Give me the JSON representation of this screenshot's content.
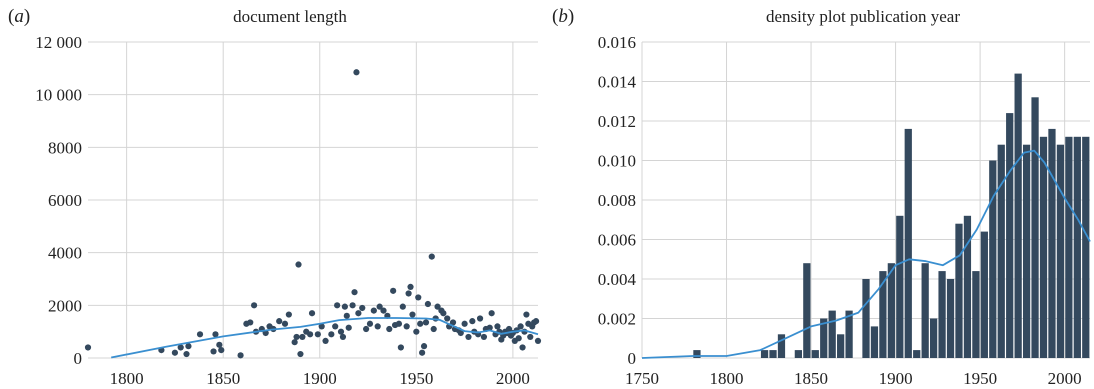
{
  "chart_data": [
    {
      "type": "scatter",
      "panel_label": "a",
      "title": "document length",
      "xlabel": "",
      "ylabel": "",
      "xlim": [
        1780,
        2013
      ],
      "ylim": [
        0,
        12000
      ],
      "xticks": [
        1800,
        1850,
        1900,
        1950,
        2000
      ],
      "xtick_labels": [
        "1800",
        "1850",
        "1900",
        "1950",
        "2000"
      ],
      "yticks": [
        0,
        2000,
        4000,
        6000,
        8000,
        10000,
        12000
      ],
      "ytick_labels": [
        "0",
        "2000",
        "4000",
        "6000",
        "8000",
        "10 000",
        "12 000"
      ],
      "grid": true,
      "point_color": "#34495e",
      "line_color": "#3a8fd0",
      "points": [
        [
          1780,
          400
        ],
        [
          1818,
          300
        ],
        [
          1825,
          200
        ],
        [
          1828,
          400
        ],
        [
          1831,
          150
        ],
        [
          1832,
          450
        ],
        [
          1838,
          900
        ],
        [
          1845,
          250
        ],
        [
          1846,
          900
        ],
        [
          1848,
          500
        ],
        [
          1849,
          300
        ],
        [
          1859,
          100
        ],
        [
          1862,
          1300
        ],
        [
          1864,
          1350
        ],
        [
          1866,
          2000
        ],
        [
          1867,
          1000
        ],
        [
          1870,
          1100
        ],
        [
          1872,
          950
        ],
        [
          1874,
          1200
        ],
        [
          1876,
          1100
        ],
        [
          1879,
          1400
        ],
        [
          1882,
          1300
        ],
        [
          1884,
          1650
        ],
        [
          1887,
          600
        ],
        [
          1888,
          800
        ],
        [
          1889,
          3550
        ],
        [
          1890,
          150
        ],
        [
          1891,
          800
        ],
        [
          1893,
          1000
        ],
        [
          1895,
          900
        ],
        [
          1896,
          1700
        ],
        [
          1899,
          900
        ],
        [
          1901,
          1200
        ],
        [
          1903,
          650
        ],
        [
          1906,
          900
        ],
        [
          1908,
          1200
        ],
        [
          1909,
          2000
        ],
        [
          1911,
          1000
        ],
        [
          1912,
          800
        ],
        [
          1913,
          1950
        ],
        [
          1914,
          1600
        ],
        [
          1915,
          1150
        ],
        [
          1917,
          2000
        ],
        [
          1918,
          2500
        ],
        [
          1919,
          10850
        ],
        [
          1920,
          1700
        ],
        [
          1922,
          1900
        ],
        [
          1924,
          1100
        ],
        [
          1926,
          1300
        ],
        [
          1928,
          1800
        ],
        [
          1930,
          1200
        ],
        [
          1931,
          1950
        ],
        [
          1933,
          1800
        ],
        [
          1935,
          1600
        ],
        [
          1936,
          1100
        ],
        [
          1938,
          2550
        ],
        [
          1939,
          1250
        ],
        [
          1941,
          1300
        ],
        [
          1942,
          400
        ],
        [
          1943,
          1950
        ],
        [
          1945,
          1200
        ],
        [
          1946,
          2450
        ],
        [
          1947,
          2700
        ],
        [
          1948,
          1650
        ],
        [
          1950,
          1000
        ],
        [
          1951,
          2300
        ],
        [
          1952,
          1300
        ],
        [
          1953,
          200
        ],
        [
          1954,
          450
        ],
        [
          1955,
          1350
        ],
        [
          1956,
          2050
        ],
        [
          1958,
          3850
        ],
        [
          1959,
          1100
        ],
        [
          1960,
          1500
        ],
        [
          1961,
          1950
        ],
        [
          1963,
          1800
        ],
        [
          1964,
          1700
        ],
        [
          1966,
          1500
        ],
        [
          1967,
          1200
        ],
        [
          1969,
          1350
        ],
        [
          1970,
          1100
        ],
        [
          1972,
          1050
        ],
        [
          1973,
          950
        ],
        [
          1975,
          1300
        ],
        [
          1977,
          800
        ],
        [
          1979,
          1400
        ],
        [
          1980,
          1000
        ],
        [
          1982,
          900
        ],
        [
          1983,
          1500
        ],
        [
          1985,
          800
        ],
        [
          1986,
          1100
        ],
        [
          1988,
          1150
        ],
        [
          1989,
          1700
        ],
        [
          1991,
          900
        ],
        [
          1992,
          1200
        ],
        [
          1993,
          1000
        ],
        [
          1994,
          700
        ],
        [
          1995,
          850
        ],
        [
          1996,
          1000
        ],
        [
          1997,
          950
        ],
        [
          1998,
          1100
        ],
        [
          1999,
          850
        ],
        [
          2000,
          950
        ],
        [
          2001,
          650
        ],
        [
          2002,
          1050
        ],
        [
          2003,
          750
        ],
        [
          2004,
          1200
        ],
        [
          2005,
          400
        ],
        [
          2006,
          1000
        ],
        [
          2007,
          1650
        ],
        [
          2008,
          1300
        ],
        [
          2009,
          800
        ],
        [
          2010,
          1200
        ],
        [
          2011,
          1350
        ],
        [
          2012,
          1400
        ],
        [
          2013,
          650
        ]
      ],
      "trend": [
        [
          1792,
          20
        ],
        [
          1820,
          420
        ],
        [
          1850,
          820
        ],
        [
          1875,
          1080
        ],
        [
          1890,
          1180
        ],
        [
          1900,
          1300
        ],
        [
          1910,
          1440
        ],
        [
          1925,
          1520
        ],
        [
          1940,
          1520
        ],
        [
          1955,
          1500
        ],
        [
          1962,
          1450
        ],
        [
          1968,
          1250
        ],
        [
          1975,
          1020
        ],
        [
          1982,
          970
        ],
        [
          1988,
          1050
        ],
        [
          1994,
          920
        ],
        [
          2000,
          1000
        ],
        [
          2006,
          1050
        ],
        [
          2013,
          900
        ]
      ]
    },
    {
      "type": "bar",
      "panel_label": "b",
      "title": "density plot publication year",
      "xlabel": "",
      "ylabel": "",
      "xlim": [
        1750,
        2015
      ],
      "ylim": [
        0,
        0.016
      ],
      "xticks": [
        1750,
        1800,
        1850,
        1900,
        1950,
        2000
      ],
      "xtick_labels": [
        "1750",
        "1800",
        "1850",
        "1900",
        "1950",
        "2000"
      ],
      "yticks": [
        0,
        0.002,
        0.004,
        0.006,
        0.008,
        0.01,
        0.012,
        0.014,
        0.016
      ],
      "ytick_labels": [
        "0",
        "0.002",
        "0.004",
        "0.006",
        "0.008",
        "0.010",
        "0.012",
        "0.014",
        "0.016"
      ],
      "grid": true,
      "bar_color": "#34495e",
      "line_color": "#3a8fd0",
      "bin_width": 5,
      "bins": [
        [
          1780,
          0.0004
        ],
        [
          1820,
          0.0004
        ],
        [
          1825,
          0.0004
        ],
        [
          1830,
          0.0012
        ],
        [
          1840,
          0.0004
        ],
        [
          1845,
          0.0048
        ],
        [
          1850,
          0.0004
        ],
        [
          1855,
          0.002
        ],
        [
          1860,
          0.0024
        ],
        [
          1865,
          0.0012
        ],
        [
          1870,
          0.0024
        ],
        [
          1880,
          0.004
        ],
        [
          1885,
          0.0016
        ],
        [
          1890,
          0.0044
        ],
        [
          1895,
          0.0048
        ],
        [
          1900,
          0.0072
        ],
        [
          1905,
          0.0116
        ],
        [
          1910,
          0.0004
        ],
        [
          1915,
          0.0048
        ],
        [
          1920,
          0.002
        ],
        [
          1925,
          0.0044
        ],
        [
          1930,
          0.004
        ],
        [
          1935,
          0.0068
        ],
        [
          1940,
          0.0072
        ],
        [
          1945,
          0.0044
        ],
        [
          1950,
          0.0064
        ],
        [
          1955,
          0.01
        ],
        [
          1960,
          0.0108
        ],
        [
          1965,
          0.0124
        ],
        [
          1970,
          0.0144
        ],
        [
          1975,
          0.0108
        ],
        [
          1980,
          0.0132
        ],
        [
          1985,
          0.0112
        ],
        [
          1990,
          0.0116
        ],
        [
          1995,
          0.0108
        ],
        [
          2000,
          0.0112
        ],
        [
          2005,
          0.0112
        ],
        [
          2010,
          0.0112
        ]
      ],
      "density": [
        [
          1750,
          0.0
        ],
        [
          1780,
          0.0001
        ],
        [
          1800,
          0.0001
        ],
        [
          1820,
          0.0004
        ],
        [
          1835,
          0.001
        ],
        [
          1850,
          0.0016
        ],
        [
          1865,
          0.0019
        ],
        [
          1878,
          0.0023
        ],
        [
          1890,
          0.0035
        ],
        [
          1900,
          0.0047
        ],
        [
          1908,
          0.005
        ],
        [
          1918,
          0.0049
        ],
        [
          1928,
          0.0047
        ],
        [
          1938,
          0.0052
        ],
        [
          1948,
          0.0065
        ],
        [
          1958,
          0.0082
        ],
        [
          1968,
          0.0095
        ],
        [
          1976,
          0.0104
        ],
        [
          1982,
          0.0105
        ],
        [
          1988,
          0.0099
        ],
        [
          1994,
          0.009
        ],
        [
          2000,
          0.0081
        ],
        [
          2008,
          0.007
        ],
        [
          2015,
          0.0059
        ]
      ]
    }
  ]
}
